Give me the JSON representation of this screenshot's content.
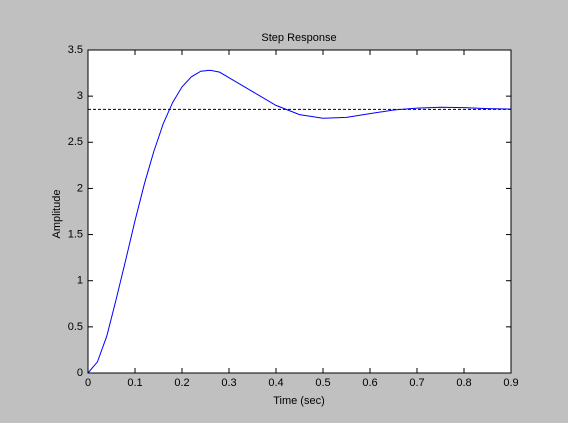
{
  "chart_data": {
    "type": "line",
    "title": "Step Response",
    "x_label": "Time (sec)",
    "y_label": "Amplitude",
    "x": [
      0,
      0.02,
      0.04,
      0.06,
      0.08,
      0.1,
      0.12,
      0.14,
      0.16,
      0.18,
      0.2,
      0.22,
      0.24,
      0.26,
      0.28,
      0.3,
      0.35,
      0.4,
      0.45,
      0.5,
      0.55,
      0.6,
      0.65,
      0.7,
      0.75,
      0.8,
      0.85,
      0.9
    ],
    "series": [
      {
        "color": "#0000ff",
        "values": [
          0,
          0.12,
          0.4,
          0.8,
          1.22,
          1.65,
          2.05,
          2.4,
          2.7,
          2.93,
          3.1,
          3.21,
          3.27,
          3.28,
          3.26,
          3.2,
          3.05,
          2.9,
          2.8,
          2.76,
          2.77,
          2.81,
          2.85,
          2.87,
          2.88,
          2.875,
          2.865,
          2.86
        ]
      }
    ],
    "steady_state": 2.857,
    "steady_state_color": "#000000",
    "xlim": [
      0,
      0.9
    ],
    "xticks": [
      0,
      0.1,
      0.2,
      0.3,
      0.4,
      0.5,
      0.6,
      0.7,
      0.8,
      0.9
    ],
    "ylim": [
      0,
      3.5
    ],
    "yticks": [
      0,
      0.5,
      1,
      1.5,
      2,
      2.5,
      3,
      3.5
    ]
  }
}
